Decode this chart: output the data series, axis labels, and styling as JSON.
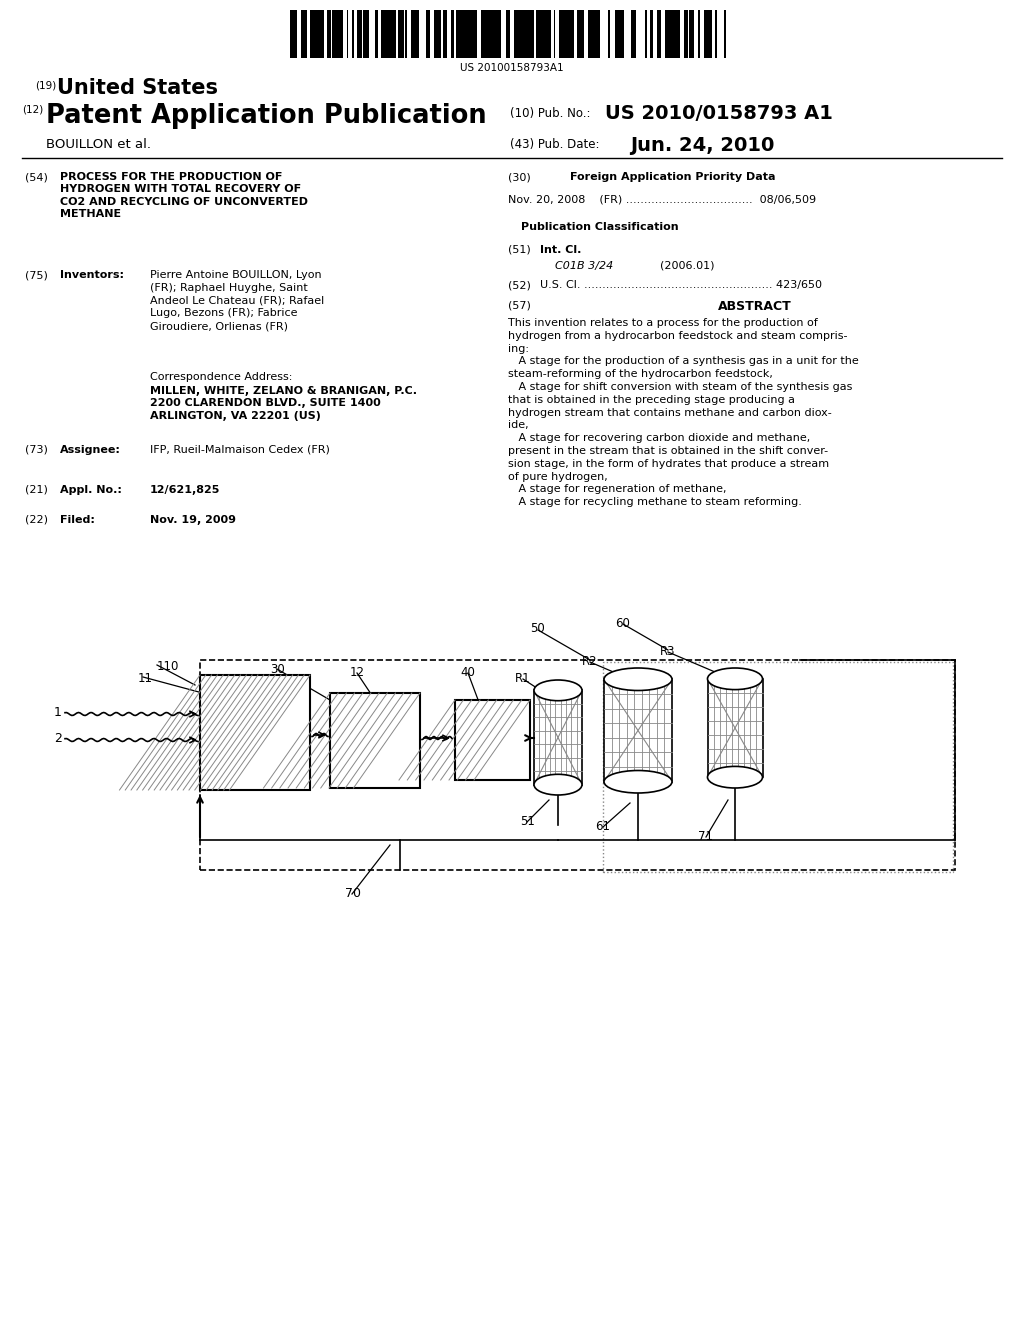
{
  "barcode_text": "US 20100158793A1",
  "h1_num": "(19)",
  "h1_text": "United States",
  "h2_num": "(12)",
  "h2_text": "Patent Application Publication",
  "h2_r_num": "(10)",
  "h2_r_label": "Pub. No.:",
  "h2_r_val": "US 2010/0158793 A1",
  "h3_left": "BOUILLON et al.",
  "h3_r_num": "(43)",
  "h3_r_label": "Pub. Date:",
  "h3_r_val": "Jun. 24, 2010",
  "f54_num": "(54)",
  "f54_text": "PROCESS FOR THE PRODUCTION OF\nHYDROGEN WITH TOTAL RECOVERY OF\nCO2 AND RECYCLING OF UNCONVERTED\nMETHANE",
  "f30_num": "(30)",
  "f30_title": "Foreign Application Priority Data",
  "f30_content": "Nov. 20, 2008    (FR) ...................................  08/06,509",
  "pub_class": "Publication Classification",
  "f51_num": "(51)",
  "f51_label": "Int. Cl.",
  "f51_class": "C01B 3/24",
  "f51_year": "(2006.01)",
  "f52_num": "(52)",
  "f52_label": "U.S. Cl.",
  "f52_dots": " .................................................... ",
  "f52_val": "423/650",
  "f57_num": "(57)",
  "f57_title": "ABSTRACT",
  "abstract": "This invention relates to a process for the production of\nhydrogen from a hydrocarbon feedstock and steam compris-\ning:\n   A stage for the production of a synthesis gas in a unit for the\nsteam-reforming of the hydrocarbon feedstock,\n   A stage for shift conversion with steam of the synthesis gas\nthat is obtained in the preceding stage producing a\nhydrogen stream that contains methane and carbon diox-\nide,\n   A stage for recovering carbon dioxide and methane,\npresent in the stream that is obtained in the shift conver-\nsion stage, in the form of hydrates that produce a stream\nof pure hydrogen,\n   A stage for regeneration of methane,\n   A stage for recycling methane to steam reforming.",
  "f75_num": "(75)",
  "f75_label": "Inventors:",
  "f75_content_bold": "Pierre Antoine BOUILLON",
  "f75_content": ", Lyon\n(FR); Raphael Huyghe, Saint\nAndeol Le Chateau (FR); Rafael\nLugo, Bezons (FR); Fabrice\nGiroudiere, Orlienas (FR)",
  "corr_title": "Correspondence Address:",
  "corr_bold": "MILLEN, WHITE, ZELANO & BRANIGAN, P.C.\n2200 CLARENDON BLVD., SUITE 1400\nARLINGTON, VA 22201 (US)",
  "f73_num": "(73)",
  "f73_label": "Assignee:",
  "f73_content": "IFP, Rueil-Malmaison Cedex (FR)",
  "f21_num": "(21)",
  "f21_label": "Appl. No.:",
  "f21_content": "12/621,825",
  "f22_num": "(22)",
  "f22_label": "Filed:",
  "f22_content": "Nov. 19, 2009",
  "bg": "#ffffff",
  "fg": "#000000",
  "gray": "#888888",
  "lgray": "#aaaaaa"
}
